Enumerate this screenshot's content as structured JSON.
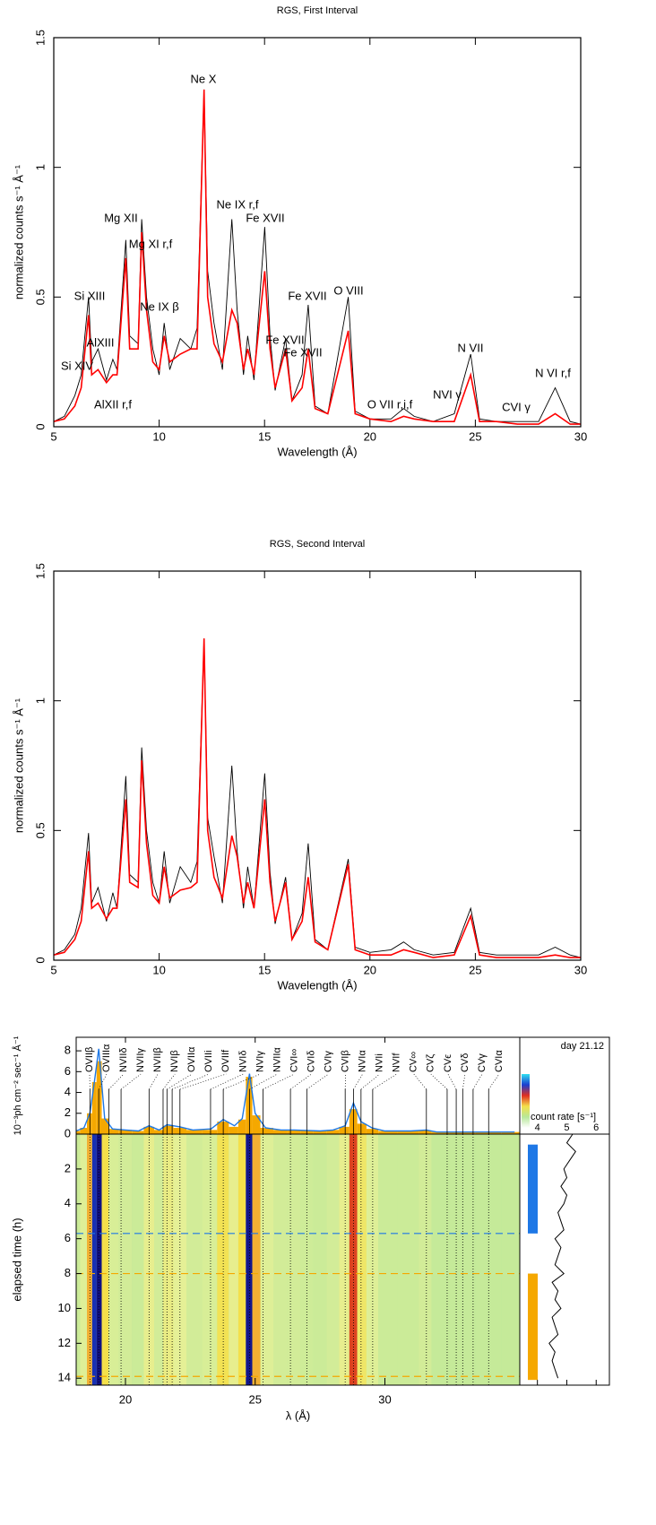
{
  "chart_data": [
    {
      "type": "spectrum",
      "title": "RGS, First Interval",
      "xlabel": "Wavelength (Å)",
      "ylabel": "normalized counts s⁻¹ Å⁻¹",
      "xlim": [
        5,
        30
      ],
      "xticks": [
        5,
        10,
        15,
        20,
        25,
        30
      ],
      "ylim": [
        0,
        1.5
      ],
      "yticks": [
        0,
        0.5,
        1,
        1.5
      ],
      "x": [
        5.0,
        5.5,
        6.0,
        6.3,
        6.65,
        6.8,
        7.1,
        7.5,
        7.8,
        8.0,
        8.42,
        8.6,
        9.0,
        9.17,
        9.4,
        9.7,
        10.0,
        10.24,
        10.5,
        11.0,
        11.5,
        11.8,
        12.13,
        12.3,
        12.6,
        13.0,
        13.45,
        13.7,
        14.0,
        14.2,
        14.5,
        15.01,
        15.26,
        15.5,
        16.0,
        16.3,
        16.78,
        17.07,
        17.4,
        18.0,
        18.97,
        19.3,
        20.0,
        21.0,
        21.6,
        22.1,
        23.0,
        24.0,
        24.78,
        25.2,
        26.0,
        27.0,
        28.0,
        28.79,
        29.5,
        30.0
      ],
      "series": [
        {
          "color": "#000000",
          "values": [
            0.02,
            0.04,
            0.12,
            0.2,
            0.5,
            0.25,
            0.3,
            0.18,
            0.26,
            0.22,
            0.72,
            0.35,
            0.32,
            0.8,
            0.5,
            0.3,
            0.2,
            0.4,
            0.22,
            0.34,
            0.3,
            0.38,
            1.3,
            0.6,
            0.4,
            0.22,
            0.8,
            0.45,
            0.2,
            0.35,
            0.18,
            0.77,
            0.35,
            0.14,
            0.34,
            0.1,
            0.2,
            0.47,
            0.08,
            0.05,
            0.5,
            0.06,
            0.03,
            0.03,
            0.07,
            0.04,
            0.02,
            0.05,
            0.28,
            0.03,
            0.02,
            0.02,
            0.02,
            0.15,
            0.02,
            0.01
          ]
        },
        {
          "color": "#ff0000",
          "values": [
            0.02,
            0.03,
            0.08,
            0.15,
            0.43,
            0.2,
            0.22,
            0.17,
            0.2,
            0.2,
            0.65,
            0.3,
            0.3,
            0.75,
            0.45,
            0.25,
            0.22,
            0.35,
            0.25,
            0.28,
            0.3,
            0.3,
            1.3,
            0.5,
            0.32,
            0.25,
            0.45,
            0.4,
            0.22,
            0.3,
            0.2,
            0.6,
            0.3,
            0.15,
            0.3,
            0.1,
            0.15,
            0.3,
            0.07,
            0.05,
            0.37,
            0.05,
            0.03,
            0.02,
            0.04,
            0.03,
            0.02,
            0.02,
            0.2,
            0.02,
            0.02,
            0.01,
            0.01,
            0.05,
            0.01,
            0.01
          ]
        }
      ],
      "annotations": [
        "Ne X",
        "Mg XII",
        "Ne IX r,f",
        "Fe XVII",
        "Mg XI r,f",
        "Si XIII",
        "Ne IX β",
        "Fe XVII",
        "O VIII",
        "AlXIII",
        "Fe XVII",
        "Fe XVII",
        "Si XIV",
        "N VII",
        "AlXII r,f",
        "O VII r,i,f",
        "NVI γ",
        "CVI γ",
        "N VI r,f"
      ]
    },
    {
      "type": "spectrum",
      "title": "RGS, Second Interval",
      "xlabel": "Wavelength (Å)",
      "ylabel": "normalized counts s⁻¹ Å⁻¹",
      "xlim": [
        5,
        30
      ],
      "xticks": [
        5,
        10,
        15,
        20,
        25,
        30
      ],
      "ylim": [
        0,
        1.5
      ],
      "yticks": [
        0,
        0.5,
        1,
        1.5
      ],
      "x": [
        5.0,
        5.5,
        6.0,
        6.3,
        6.65,
        6.8,
        7.1,
        7.5,
        7.8,
        8.0,
        8.42,
        8.6,
        9.0,
        9.17,
        9.4,
        9.7,
        10.0,
        10.24,
        10.5,
        11.0,
        11.5,
        11.8,
        12.13,
        12.3,
        12.6,
        13.0,
        13.45,
        13.7,
        14.0,
        14.2,
        14.5,
        15.01,
        15.26,
        15.5,
        16.0,
        16.3,
        16.78,
        17.07,
        17.4,
        18.0,
        18.97,
        19.3,
        20.0,
        21.0,
        21.6,
        22.1,
        23.0,
        24.0,
        24.78,
        25.2,
        26.0,
        27.0,
        28.0,
        28.79,
        29.5,
        30.0
      ],
      "series": [
        {
          "color": "#000000",
          "values": [
            0.02,
            0.04,
            0.1,
            0.2,
            0.49,
            0.22,
            0.28,
            0.15,
            0.26,
            0.2,
            0.71,
            0.33,
            0.3,
            0.82,
            0.5,
            0.3,
            0.22,
            0.42,
            0.22,
            0.36,
            0.3,
            0.38,
            1.24,
            0.55,
            0.4,
            0.22,
            0.75,
            0.42,
            0.2,
            0.36,
            0.2,
            0.72,
            0.34,
            0.14,
            0.32,
            0.08,
            0.18,
            0.45,
            0.08,
            0.04,
            0.39,
            0.05,
            0.03,
            0.04,
            0.07,
            0.04,
            0.02,
            0.03,
            0.2,
            0.03,
            0.02,
            0.02,
            0.02,
            0.05,
            0.02,
            0.01
          ]
        },
        {
          "color": "#ff0000",
          "values": [
            0.02,
            0.03,
            0.08,
            0.15,
            0.42,
            0.2,
            0.22,
            0.16,
            0.2,
            0.2,
            0.62,
            0.3,
            0.28,
            0.77,
            0.45,
            0.25,
            0.22,
            0.36,
            0.24,
            0.27,
            0.28,
            0.3,
            1.24,
            0.5,
            0.32,
            0.24,
            0.48,
            0.4,
            0.22,
            0.3,
            0.2,
            0.62,
            0.3,
            0.15,
            0.3,
            0.08,
            0.15,
            0.32,
            0.07,
            0.04,
            0.37,
            0.04,
            0.02,
            0.02,
            0.04,
            0.03,
            0.01,
            0.02,
            0.17,
            0.02,
            0.01,
            0.01,
            0.01,
            0.02,
            0.01,
            0.01
          ]
        }
      ]
    },
    {
      "type": "spectrum-map",
      "ylabel": "10⁻³ph cm⁻² sec⁻¹ Å⁻¹",
      "time_label": "elapsed time (h)",
      "xlabel": "λ (Å)",
      "xlim": [
        18.1,
        35.2
      ],
      "xticks": [
        20,
        25,
        30
      ],
      "ylim": [
        0,
        9.3
      ],
      "yticks": [
        2,
        4,
        6,
        8
      ],
      "time_lim": [
        0,
        14.4
      ],
      "time_ticks": [
        0,
        2,
        4,
        6,
        8,
        10,
        12,
        14
      ],
      "x": [
        18.1,
        18.4,
        18.63,
        18.8,
        18.97,
        19.2,
        19.5,
        20.0,
        20.5,
        20.91,
        21.3,
        21.6,
        22.1,
        22.6,
        23.3,
        23.77,
        24.2,
        24.5,
        24.78,
        25.0,
        25.4,
        26.0,
        26.5,
        27.0,
        27.5,
        28.0,
        28.47,
        28.79,
        29.08,
        29.5,
        30.0,
        31.0,
        31.6,
        32.0,
        33.0,
        34.0,
        35.0
      ],
      "series": [
        {
          "color": "#f5a800",
          "values": [
            0.3,
            0.6,
            2.0,
            5.0,
            7.0,
            1.5,
            0.5,
            0.4,
            0.3,
            0.7,
            0.4,
            0.8,
            0.6,
            0.4,
            0.4,
            1.2,
            0.7,
            1.4,
            5.5,
            1.8,
            0.6,
            0.4,
            0.4,
            0.35,
            0.3,
            0.4,
            0.7,
            2.4,
            1.0,
            0.5,
            0.3,
            0.3,
            0.35,
            0.2,
            0.2,
            0.2,
            0.2
          ]
        },
        {
          "color": "#1e78e6",
          "values": [
            0.3,
            0.6,
            2.0,
            5.0,
            8.2,
            1.5,
            0.5,
            0.4,
            0.3,
            0.8,
            0.4,
            0.9,
            0.7,
            0.4,
            0.5,
            1.4,
            0.8,
            1.5,
            5.8,
            2.0,
            0.6,
            0.4,
            0.4,
            0.35,
            0.3,
            0.4,
            0.8,
            3.0,
            1.2,
            0.6,
            0.3,
            0.3,
            0.4,
            0.2,
            0.2,
            0.2,
            0.2
          ]
        }
      ],
      "lines": {
        "labels": [
          "OVIIβ",
          "OVIIIα",
          "NVIIδ",
          "NVIIγ",
          "NVIIβ",
          "NVIβ",
          "OVIIα",
          "OVIIi",
          "OVIIf",
          "NVIδ",
          "NVIγ",
          "NVIIα",
          "CVI∞",
          "CVIδ",
          "CVIγ",
          "CVIβ",
          "NVIα",
          "NVIi",
          "NVIf",
          "CV∞",
          "CVζ",
          "CVϵ",
          "CVδ",
          "CVγ",
          "CVIα"
        ],
        "wavelengths": [
          18.63,
          18.97,
          19.36,
          19.83,
          20.91,
          21.45,
          21.6,
          21.8,
          22.1,
          23.28,
          23.77,
          24.78,
          25.3,
          26.36,
          26.99,
          28.47,
          28.79,
          29.08,
          29.53,
          31.6,
          32.4,
          32.75,
          33.0,
          33.4,
          34.0
        ]
      },
      "dashed_times": {
        "values": [
          5.7,
          8.0,
          13.9
        ],
        "colors": [
          "#1e78e6",
          "#f5a800",
          "#f5a800"
        ]
      },
      "intervals": [
        {
          "color": "#1e78e6",
          "start": 0.6,
          "end": 5.7
        },
        {
          "color": "#f5a800",
          "start": 8.0,
          "end": 14.1
        }
      ],
      "day_label": "day 21.12",
      "colorbar_label": "count rate [s⁻¹]",
      "rate_lim": [
        3.4,
        6.45
      ],
      "rate_ticks": [
        4,
        5,
        6
      ],
      "light_curve": {
        "times": [
          0,
          0.5,
          1,
          1.5,
          2,
          2.5,
          3,
          3.5,
          4,
          4.5,
          5,
          5.5,
          6,
          6.5,
          7,
          7.5,
          8,
          8.5,
          9,
          9.5,
          10,
          10.5,
          11,
          11.5,
          12,
          12.5,
          13,
          13.5,
          14
        ],
        "rates": [
          5.2,
          5.0,
          5.3,
          5.1,
          4.9,
          5.0,
          4.8,
          5.0,
          4.9,
          4.7,
          4.8,
          4.9,
          4.6,
          4.8,
          4.7,
          4.6,
          4.9,
          4.5,
          4.7,
          4.6,
          4.8,
          4.5,
          4.6,
          4.7,
          4.4,
          4.6,
          4.5,
          4.6,
          4.7
        ]
      }
    }
  ]
}
